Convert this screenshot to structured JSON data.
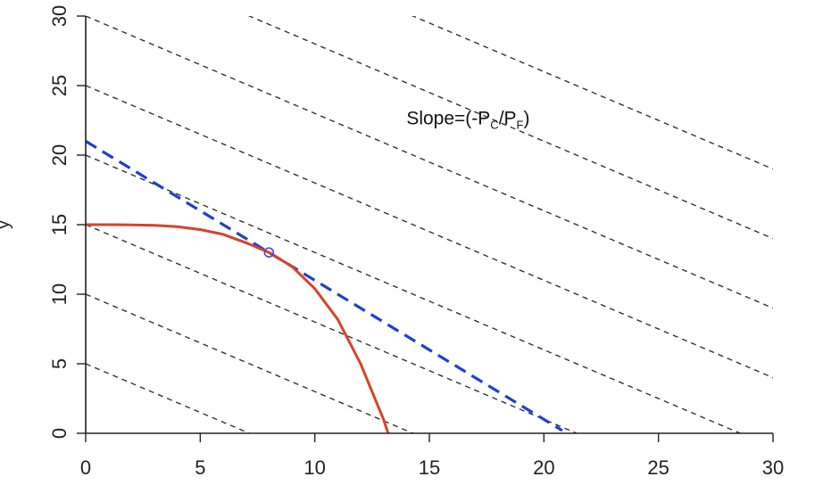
{
  "chart_data": {
    "type": "line",
    "title": "",
    "xlabel": "",
    "ylabel": "y",
    "xlim": [
      0,
      30
    ],
    "ylim": [
      0,
      30
    ],
    "x_ticks": [
      0,
      5,
      10,
      15,
      20,
      25,
      30
    ],
    "y_ticks": [
      0,
      5,
      10,
      15,
      20,
      25,
      30
    ],
    "grid": false,
    "iso_lines": {
      "style": "dashed",
      "color": "#333333",
      "slope": -0.7,
      "intercepts": [
        5,
        10,
        15,
        20,
        25,
        30,
        35,
        40
      ]
    },
    "budget_line": {
      "style": "dashed",
      "color": "#1f3fd6",
      "slope": -1.0,
      "intercept": 21,
      "x_end": 20.8
    },
    "frontier_curve": {
      "color": "#d6432b",
      "x": [
        0,
        1,
        2,
        3,
        4,
        5,
        6,
        7,
        8,
        9,
        10,
        11,
        12,
        12.5,
        13,
        13.2
      ],
      "y": [
        15,
        15.0,
        14.99,
        14.95,
        14.85,
        14.65,
        14.3,
        13.7,
        13.0,
        12.0,
        10.4,
        8.2,
        5.0,
        3.0,
        1.0,
        0
      ]
    },
    "tangent_point": {
      "x": 8,
      "y": 13,
      "color": "#4a4ae0"
    },
    "annotation": {
      "main1": "Slope=(-P",
      "sub1": "C",
      "main2": "/P",
      "sub2": "F",
      "main3": ")",
      "x": 14.0,
      "y": 22.2
    }
  }
}
